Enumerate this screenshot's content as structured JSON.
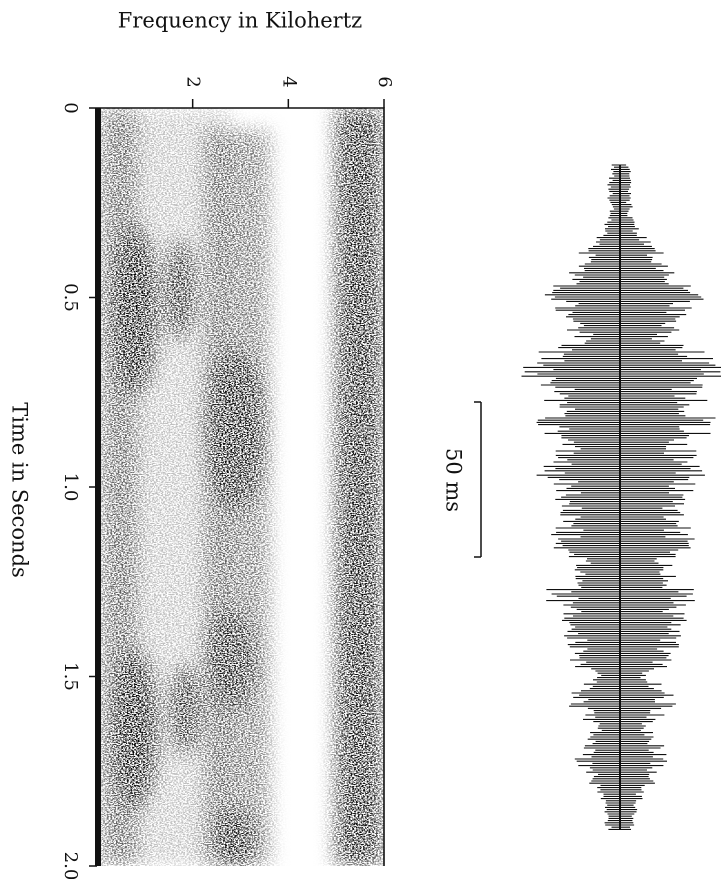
{
  "chart_data": {
    "type": "spectrogram",
    "x_label": "Frequency in Kilohertz",
    "y_label": "Time in Seconds",
    "xlim": [
      0,
      6
    ],
    "xticks": [
      2,
      4,
      6
    ],
    "ylim": [
      0,
      2
    ],
    "yticks": [
      0,
      0.5,
      {
        "value": 1,
        "label": "1.0"
      },
      1.5,
      {
        "value": 2,
        "label": "2.0"
      }
    ],
    "annotation": "50 ms"
  }
}
